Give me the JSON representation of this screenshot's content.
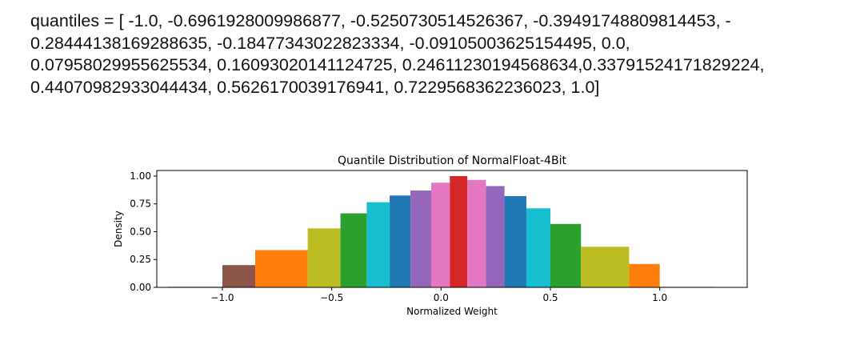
{
  "text_block": {
    "lines": [
      "quantiles =  [ -1.0, -0.6961928009986877, -0.5250730514526367, -0.39491748809814453, -",
      "0.28444138169288635, -0.18477343022823334, -0.09105003625154495, 0.0,",
      "0.07958029955625534, 0.16093020141124725, 0.24611230194568634,0.33791524171829224,",
      "0.44070982933044434, 0.5626170039176941, 0.7229568362236023, 1.0]"
    ]
  },
  "chart_data": {
    "type": "bar",
    "title": "Quantile Distribution of NormalFloat-4Bit",
    "xlabel": "Normalized Weight",
    "ylabel": "Density",
    "xlim": [
      -1.3,
      1.4
    ],
    "ylim": [
      0,
      1.05
    ],
    "xticks": [
      -1.0,
      -0.5,
      0.0,
      0.5,
      1.0
    ],
    "xtick_labels": [
      "−1.0",
      "−0.5",
      "0.0",
      "0.5",
      "1.0"
    ],
    "yticks": [
      0.0,
      0.25,
      0.5,
      0.75,
      1.0
    ],
    "ytick_labels": [
      "0.00",
      "0.25",
      "0.50",
      "0.75",
      "1.00"
    ],
    "grid": false,
    "bars": [
      {
        "x0": -1.25,
        "x1": -1.0,
        "value": 0.005,
        "color": "#8c564b"
      },
      {
        "x0": -1.0,
        "x1": -0.85,
        "value": 0.2,
        "color": "#8c564b"
      },
      {
        "x0": -0.85,
        "x1": -0.61,
        "value": 0.335,
        "color": "#ff7f0e"
      },
      {
        "x0": -0.61,
        "x1": -0.46,
        "value": 0.53,
        "color": "#bcbd22"
      },
      {
        "x0": -0.46,
        "x1": -0.34,
        "value": 0.665,
        "color": "#2ca02c"
      },
      {
        "x0": -0.34,
        "x1": -0.235,
        "value": 0.765,
        "color": "#17becf"
      },
      {
        "x0": -0.235,
        "x1": -0.14,
        "value": 0.825,
        "color": "#1f77b4"
      },
      {
        "x0": -0.14,
        "x1": -0.045,
        "value": 0.87,
        "color": "#9467bd"
      },
      {
        "x0": -0.045,
        "x1": 0.04,
        "value": 0.94,
        "color": "#e377c2"
      },
      {
        "x0": 0.04,
        "x1": 0.12,
        "value": 1.0,
        "color": "#d62728"
      },
      {
        "x0": 0.12,
        "x1": 0.205,
        "value": 0.965,
        "color": "#e377c2"
      },
      {
        "x0": 0.205,
        "x1": 0.29,
        "value": 0.91,
        "color": "#9467bd"
      },
      {
        "x0": 0.29,
        "x1": 0.39,
        "value": 0.82,
        "color": "#1f77b4"
      },
      {
        "x0": 0.39,
        "x1": 0.5,
        "value": 0.71,
        "color": "#17becf"
      },
      {
        "x0": 0.5,
        "x1": 0.64,
        "value": 0.57,
        "color": "#2ca02c"
      },
      {
        "x0": 0.64,
        "x1": 0.86,
        "value": 0.365,
        "color": "#bcbd22"
      },
      {
        "x0": 0.86,
        "x1": 1.0,
        "value": 0.21,
        "color": "#ff7f0e"
      },
      {
        "x0": 1.0,
        "x1": 1.25,
        "value": 0.005,
        "color": "#ff7f0e"
      }
    ]
  }
}
